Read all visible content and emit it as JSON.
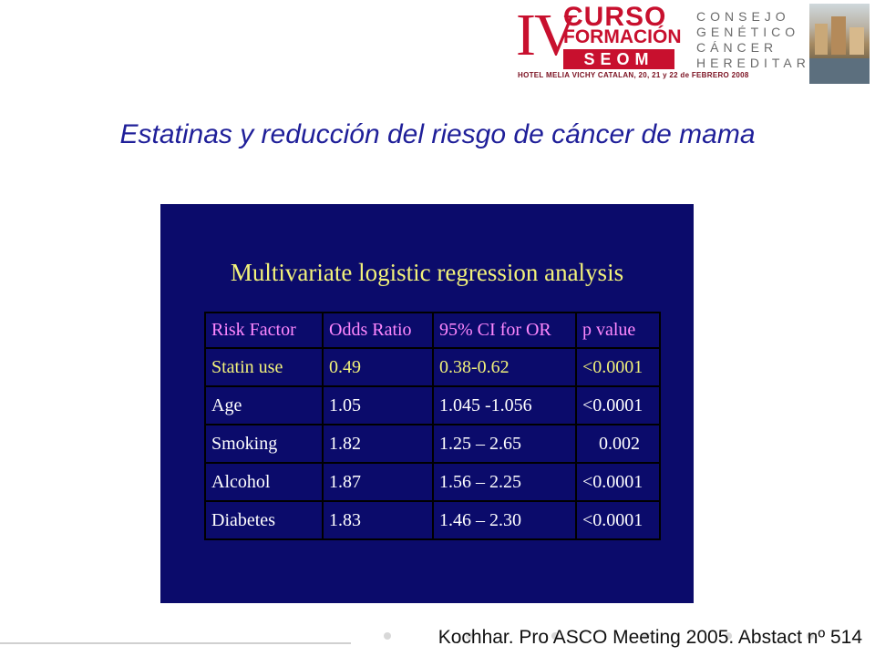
{
  "logo": {
    "numeral": "IV",
    "curso": "CURSO",
    "formacion": "FORMACIÓN",
    "seom": "SEOM",
    "consejo_lines": [
      "CONSEJO",
      "GENÉTICO",
      "CÁNCER",
      "HEREDITARIO"
    ],
    "hotel_line": "HOTEL MELIA VICHY CATALAN, 20, 21 y 22 de FEBRERO 2008",
    "brand_color": "#c8102e"
  },
  "title": "Estatinas y reducción del riesgo de cáncer de mama",
  "slide": {
    "heading": "Multivariate logistic regression analysis",
    "columns": [
      "Risk Factor",
      "Odds Ratio",
      "95% CI for OR",
      "p value"
    ],
    "rows": [
      [
        "Statin use",
        "0.49",
        "0.38-0.62",
        "<0.0001"
      ],
      [
        "Age",
        "1.05",
        "1.045 -1.056",
        "<0.0001"
      ],
      [
        "Smoking",
        "1.82",
        "1.25 – 2.65",
        "0.002"
      ],
      [
        "Alcohol",
        "1.87",
        "1.56 – 2.25",
        "<0.0001"
      ],
      [
        "Diabetes",
        "1.83",
        "1.46 – 2.30",
        "<0.0001"
      ]
    ],
    "background_color": "#0b0b6b",
    "highlight_color": "#f2f27a",
    "header_color": "#ff88ff"
  },
  "citation": "Kochhar. Pro ASCO Meeting 2005. Abstact nº 514"
}
